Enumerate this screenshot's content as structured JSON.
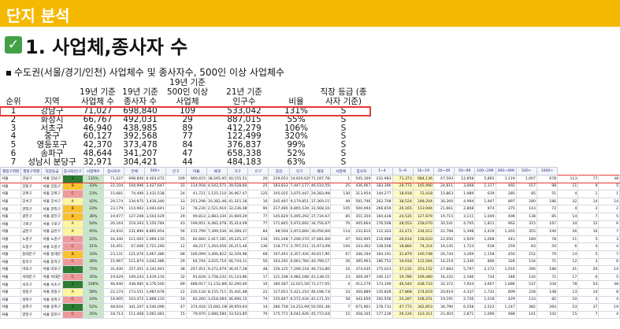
{
  "banner": {
    "title": "단지 분석"
  },
  "heading": {
    "check_icon": "check-icon",
    "title": "1. 사업체,종사자 수"
  },
  "subhead": {
    "text": "수도권(서울/경기/인천) 사업체수 및 종사자수, 500인 이상 사업체수"
  },
  "summary_table": {
    "col_headers": [
      {
        "top": "",
        "bottom": "순위"
      },
      {
        "top": "",
        "bottom": "지역"
      },
      {
        "top": "19년 기준",
        "bottom": "사업체 수"
      },
      {
        "top": "19년 기준",
        "bottom": "종사자 수"
      },
      {
        "top": "19년 기준",
        "bottom": "500인 이상 사업체"
      },
      {
        "top": "21년 기준",
        "bottom": "인구수"
      },
      {
        "top": "",
        "bottom": "비율"
      },
      {
        "top": "",
        "bottom": "직장 등급 (종사자 기준)"
      }
    ],
    "rows": [
      {
        "rank": "1",
        "region": "강남구",
        "biz": "71,027",
        "workers": "698,840",
        "big500": "109",
        "pop": "533,042",
        "ratio": "131%",
        "grade": "S"
      },
      {
        "rank": "2",
        "region": "화성시",
        "biz": "66,767",
        "workers": "492,031",
        "big500": "29",
        "pop": "887,015",
        "ratio": "55%",
        "grade": "S"
      },
      {
        "rank": "3",
        "region": "서초구",
        "biz": "46,940",
        "workers": "438,985",
        "big500": "89",
        "pop": "412,279",
        "ratio": "106%",
        "grade": "S"
      },
      {
        "rank": "4",
        "region": "중구",
        "biz": "60,127",
        "workers": "392,568",
        "big500": "77",
        "pop": "122,499",
        "ratio": "320%",
        "grade": "S"
      },
      {
        "rank": "5",
        "region": "영등포구",
        "biz": "42,370",
        "workers": "373,478",
        "big500": "84",
        "pop": "376,837",
        "ratio": "99%",
        "grade": "S"
      },
      {
        "rank": "6",
        "region": "송파구",
        "biz": "48,644",
        "workers": "341,207",
        "big500": "47",
        "pop": "658,338",
        "ratio": "52%",
        "grade": "S"
      },
      {
        "rank": "7",
        "region": "성남시 분당구",
        "biz": "32,971",
        "workers": "304,421",
        "big500": "44",
        "pop": "484,183",
        "ratio": "63%",
        "grade": "S"
      }
    ]
  },
  "detail_table": {
    "headers": [
      "행정구역명",
      "행정구역명",
      "직장등급",
      "종사자/인구",
      "사업체수",
      "종사자수",
      "전체",
      "500+",
      "인구",
      "비율",
      "세대",
      "가구",
      "인구",
      "증감",
      "인구",
      "세대",
      "사업체",
      "종사자",
      "1~4",
      "5~9",
      "10~19",
      "20~49",
      "50~99",
      "100~299",
      "300~499",
      "500+",
      "1000+"
    ],
    "rows": [
      {
        "a": "서울",
        "b": "강남구",
        "c": "서울 강남구",
        "g": "S",
        "p": "131%",
        "v": [
          "71,027",
          "698,840",
          "6,403,072",
          "109",
          "960,415",
          "38,565,957",
          "40,155,513",
          "20",
          "229,653",
          "14,920,629",
          "71,187,784",
          "1",
          "545,169",
          "232,983",
          "71,373",
          "684,136",
          "47,593",
          "12,858",
          "5,892",
          "3,119",
          "1,007",
          "678",
          "113",
          "77",
          "38"
        ]
      },
      {
        "a": "서울",
        "b": "강동구",
        "c": "서울 강동구",
        "g": "B",
        "p": "33%",
        "v": [
          "22,104",
          "104,996",
          "3,427,647",
          "31",
          "114,918",
          "4,542,571",
          "39,528,603",
          "25",
          "183,833",
          "7,447,177",
          "46,510,556",
          "25",
          "436,067",
          "183,390",
          "29,772",
          "145,990",
          "24,811",
          "3,068",
          "1,117",
          "492",
          "157",
          "98",
          "11",
          "9",
          "5"
        ]
      },
      {
        "a": "서울",
        "b": "강북구",
        "c": "서울 강북구",
        "g": "C",
        "p": "23%",
        "v": [
          "15,681",
          "74,490",
          "2,431,538",
          "24",
          "41,721",
          "1,125,110",
          "26,967,474",
          "125",
          "105,025",
          "3,075,447",
          "29,283,998",
          "130",
          "313,954",
          "144,277",
          "18,918",
          "72,418",
          "15,863",
          "1,989",
          "639",
          "285",
          "85",
          "51",
          "4",
          "1",
          "1"
        ]
      },
      {
        "a": "서울",
        "b": "강서구",
        "c": "서울 강서구",
        "g": "A",
        "p": "42%",
        "v": [
          "29,174",
          "234,975",
          "3,416,346",
          "33",
          "251,298",
          "10,382,464",
          "41,315,182",
          "16",
          "245,497",
          "9,179,851",
          "37,369,157",
          "49",
          "591,796",
          "262,708",
          "38,524",
          "248,204",
          "30,260",
          "4,994",
          "1,947",
          "897",
          "280",
          "186",
          "32",
          "14",
          "14"
        ]
      },
      {
        "a": "서울",
        "b": "관악구",
        "c": "서울 관악구",
        "g": "B",
        "p": "23%",
        "v": [
          "23,179",
          "114,902",
          "3,043,641",
          "12",
          "78,230",
          "2,521,910",
          "32,236,089",
          "90",
          "217,485",
          "6,865,539",
          "31,568,104",
          "105",
          "500,094",
          "266,659",
          "26,165",
          "113,944",
          "21,661",
          "2,868",
          "974",
          "375",
          "143",
          "72",
          "4",
          "2",
          "2"
        ]
      },
      {
        "a": "서울",
        "b": "광진구",
        "c": "서울 광진구",
        "g": "B",
        "p": "36%",
        "v": [
          "19,977",
          "127,208",
          "3,503,529",
          "29",
          "90,813",
          "2,883,330",
          "31,669,299",
          "77",
          "145,829",
          "5,495,292",
          "37,734,674",
          "85",
          "351,350",
          "164,428",
          "24,535",
          "127,879",
          "19,715",
          "3,111",
          "1,049",
          "406",
          "138",
          "85",
          "14",
          "7",
          "5"
        ]
      },
      {
        "a": "서울",
        "b": "구로구",
        "c": "서울 구로구",
        "g": "A",
        "p": "54%",
        "v": [
          "26,164",
          "219,393",
          "5,150,784",
          "43",
          "199,951",
          "6,481,078",
          "35,414,099",
          "77",
          "171,845",
          "5,972,692",
          "34,756,679",
          "70",
          "405,664",
          "176,568",
          "28,553",
          "218,070",
          "30,541",
          "4,705",
          "1,811",
          "962",
          "315",
          "167",
          "34",
          "12",
          "6"
        ]
      },
      {
        "a": "서울",
        "b": "금천구",
        "c": "서울 금천구",
        "g": "A",
        "p": "95%",
        "v": [
          "24,932",
          "231,890",
          "8,865,954",
          "56",
          "215,799",
          "7,399,536",
          "34,289,372",
          "84",
          "98,504",
          "2,973,660",
          "30,056,606",
          "114",
          "232,810",
          "112,303",
          "22,472",
          "234,012",
          "22,798",
          "5,398",
          "2,419",
          "1,265",
          "355",
          "194",
          "26",
          "16",
          "7"
        ]
      },
      {
        "a": "서울",
        "b": "노원구",
        "c": "서울 노원구",
        "g": "C",
        "p": "22%",
        "v": [
          "16,340",
          "111,002",
          "2,069,116",
          "55",
          "82,660",
          "2,417,181",
          "29,225,377",
          "116",
          "191,248",
          "7,206,570",
          "37,681,606",
          "47",
          "502,905",
          "216,986",
          "26,616",
          "118,610",
          "22,050",
          "2,929",
          "1,008",
          "441",
          "189",
          "78",
          "11",
          "5",
          "3"
        ]
      },
      {
        "a": "서울",
        "b": "도봉구",
        "c": "서울 도봉구",
        "g": "C",
        "p": "21%",
        "v": [
          "16,451",
          "67,000",
          "2,721,160",
          "12",
          "48,217",
          "1,264,056",
          "26,215,462",
          "136",
          "118,771",
          "3,797,511",
          "31,973,098",
          "100",
          "333,362",
          "138,508",
          "18,884",
          "74,314",
          "16,145",
          "1,723",
          "618",
          "259",
          "83",
          "54",
          "6",
          "4",
          "4"
        ]
      },
      {
        "a": "서울",
        "b": "동대문구",
        "c": "서울 동대문구",
        "g": "B",
        "p": "33%",
        "v": [
          "23,131",
          "121,076",
          "2,667,386",
          "68",
          "106,099",
          "3,406,822",
          "32,109,960",
          "68",
          "107,491",
          "4,357,426",
          "40,617,901",
          "67",
          "346,194",
          "164,191",
          "31,879",
          "140,748",
          "26,744",
          "3,269",
          "1,158",
          "450",
          "152",
          "79",
          "14",
          "5",
          "7"
        ]
      },
      {
        "a": "서울",
        "b": "동작구",
        "c": "서울 동작구",
        "g": "C",
        "p": "28%",
        "v": [
          "15,967",
          "111,874",
          "3,642,386",
          "29",
          "64,744",
          "3,025,710",
          "46,734,116",
          "50",
          "163,292",
          "6,661,784",
          "40,799,177",
          "26",
          "395,963",
          "180,753",
          "19,918",
          "112,564",
          "16,219",
          "2,330",
          "806",
          "326",
          "134",
          "71",
          "12",
          "3",
          "6"
        ]
      },
      {
        "a": "서울",
        "b": "마포구",
        "c": "서울 마포구",
        "g": "S",
        "p": "72%",
        "v": [
          "31,930",
          "257,451",
          "4,142,941",
          "38",
          "257,451",
          "9,272,679",
          "36,017,288",
          "48",
          "156,125",
          "7,296,518",
          "46,733,805",
          "16",
          "374,035",
          "175,023",
          "37,232",
          "253,152",
          "27,683",
          "5,797",
          "2,172",
          "1,010",
          "290",
          "186",
          "41",
          "20",
          "14"
        ]
      },
      {
        "a": "서울",
        "b": "서대문구",
        "c": "서울 서대문구",
        "g": "C",
        "p": "35%",
        "v": [
          "19,029",
          "109,243",
          "3,419,116",
          "32",
          "91,628",
          "3,758,232",
          "41,124,864",
          "17",
          "121,108",
          "4,982,188",
          "41,138,151",
          "23",
          "309,397",
          "140,157",
          "19,786",
          "109,480",
          "16,332",
          "2,166",
          "734",
          "348",
          "116",
          "72",
          "17",
          "6",
          "5"
        ]
      },
      {
        "a": "서울",
        "b": "서초구",
        "c": "서울 서초구",
        "g": "S",
        "p": "106%",
        "v": [
          "46,940",
          "438,985",
          "6,176,500",
          "89",
          "488,917",
          "11,152,868",
          "42,290,005",
          "10",
          "180,587",
          "12,021,565",
          "71,177,053",
          "4",
          "412,279",
          "173,199",
          "46,540",
          "438,733",
          "32,372",
          "7,924",
          "3,607",
          "1,686",
          "537",
          "334",
          "78",
          "53",
          "38"
        ]
      },
      {
        "a": "서울",
        "b": "성동구",
        "c": "서울 성동구",
        "g": "A",
        "p": "58%",
        "v": [
          "22,174",
          "173,551",
          "3,987,678",
          "22",
          "230,118",
          "8,155,711",
          "35,441,486",
          "22",
          "117,651",
          "5,421,210",
          "46,198,738",
          "10",
          "300,889",
          "135,828",
          "27,868",
          "174,619",
          "20,619",
          "4,337",
          "1,732",
          "809",
          "228",
          "148",
          "23",
          "14",
          "8"
        ]
      },
      {
        "a": "서울",
        "b": "성북구",
        "c": "서울 성북구",
        "g": "C",
        "p": "24%",
        "v": [
          "18,905",
          "103,472",
          "2,868,110",
          "10",
          "82,260",
          "3,018,084",
          "36,690,153",
          "74",
          "155,847",
          "6,572,434",
          "42,171,519",
          "58",
          "442,650",
          "192,556",
          "25,287",
          "108,251",
          "19,191",
          "2,726",
          "1,018",
          "429",
          "133",
          "82",
          "10",
          "3",
          "4"
        ]
      },
      {
        "a": "서울",
        "b": "송파구",
        "c": "서울 송파구",
        "g": "S",
        "p": "52%",
        "v": [
          "48,644",
          "341,207",
          "4,540,096",
          "47",
          "374,418",
          "15,681,180",
          "39,959,630",
          "14",
          "280,758",
          "14,253,992",
          "50,591,384",
          "7",
          "675,961",
          "278,731",
          "47,772",
          "342,853",
          "36,790",
          "6,558",
          "2,522",
          "1,147",
          "382",
          "264",
          "53",
          "37",
          "19"
        ]
      },
      {
        "a": "서울",
        "b": "양천구",
        "c": "서울 양천구",
        "g": "C",
        "p": "25%",
        "v": [
          "18,713",
          "111,468",
          "3,061,081",
          "15",
          "79,970",
          "2,680,580",
          "33,524,859",
          "70",
          "175,771",
          "8,042,926",
          "45,772,045",
          "15",
          "458,165",
          "177,236",
          "26,126",
          "123,311",
          "21,404",
          "2,871",
          "1,096",
          "488",
          "141",
          "102",
          "15",
          "7",
          "4"
        ]
      }
    ]
  }
}
